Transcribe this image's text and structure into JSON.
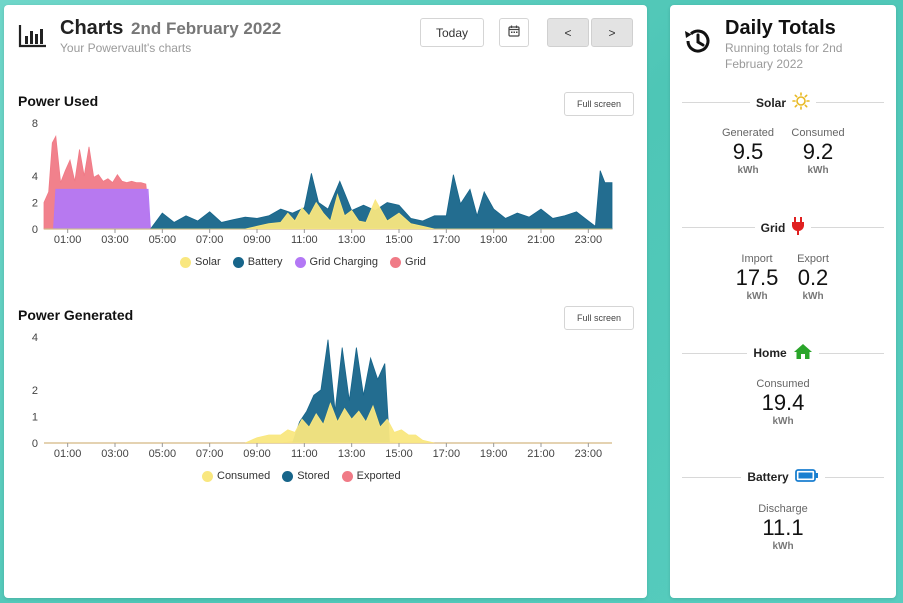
{
  "header": {
    "title": "Charts",
    "date": "2nd February 2022",
    "subtitle": "Your Powervault's charts",
    "today_button": "Today",
    "prev_button": "<",
    "next_button": ">",
    "chart_icon": "bar-chart-icon",
    "calendar_icon": "calendar-icon"
  },
  "colors": {
    "solar": "#f9e77f",
    "battery": "#17658a",
    "grid_charging": "#b378f5",
    "grid": "#f07a86",
    "consumed": "#f9e77f",
    "stored": "#17658a",
    "exported": "#f07a86"
  },
  "chart_data": [
    {
      "type": "area",
      "title": "Power Used",
      "fullscreen_label": "Full screen",
      "x_ticks": [
        "01:00",
        "03:00",
        "05:00",
        "07:00",
        "09:00",
        "11:00",
        "13:00",
        "15:00",
        "17:00",
        "19:00",
        "21:00",
        "23:00"
      ],
      "y_ticks": [
        0,
        2,
        4,
        8
      ],
      "ylim": [
        0,
        8
      ],
      "xlim_hours": [
        0,
        24
      ],
      "legend": [
        "Solar",
        "Battery",
        "Grid Charging",
        "Grid"
      ],
      "series": [
        {
          "name": "Solar",
          "x": [
            0,
            8.5,
            9,
            9.5,
            10,
            10.3,
            10.6,
            10.9,
            11.2,
            11.5,
            11.8,
            12.1,
            12.4,
            12.7,
            13,
            13.3,
            13.6,
            14,
            14.5,
            15,
            15.5,
            16,
            16.5,
            24
          ],
          "values": [
            0,
            0,
            0.2,
            0.4,
            0.5,
            1.2,
            0.6,
            1.6,
            1.0,
            2.0,
            1.2,
            0.6,
            2.6,
            1.0,
            1.4,
            0.6,
            0.5,
            2.2,
            0.6,
            1.2,
            0.4,
            0.2,
            0,
            0
          ]
        },
        {
          "name": "Battery",
          "x": [
            0,
            4.5,
            5,
            5.5,
            6,
            6.5,
            7,
            7.5,
            8,
            8.5,
            9,
            9.5,
            10,
            10.5,
            11,
            11.3,
            11.6,
            12,
            12.5,
            13,
            13.5,
            14,
            14.5,
            15,
            15.5,
            16,
            16.5,
            17,
            17.3,
            17.6,
            18,
            18.3,
            18.6,
            19,
            19.5,
            20,
            20.5,
            21,
            21.5,
            22,
            22.5,
            23,
            23.3,
            23.5,
            23.7,
            24
          ],
          "values": [
            0,
            0,
            1.2,
            0.5,
            1.0,
            0.6,
            1.3,
            0.5,
            0.7,
            0.9,
            0.8,
            1.0,
            1.5,
            1.2,
            1.6,
            4.2,
            2.0,
            1.5,
            3.6,
            1.4,
            1.8,
            1.4,
            2.0,
            1.8,
            0.8,
            0.6,
            1.0,
            1.0,
            4.1,
            1.9,
            3.0,
            1.0,
            2.8,
            1.5,
            0.8,
            1.2,
            0.9,
            1.5,
            0.8,
            1.0,
            1.3,
            0.6,
            0.2,
            4.4,
            3.5,
            3.5
          ]
        },
        {
          "name": "Grid Charging",
          "x": [
            0,
            0.4,
            0.5,
            4.4,
            4.5,
            24
          ],
          "values": [
            0,
            0,
            3.0,
            3.0,
            0,
            0
          ]
        },
        {
          "name": "Grid",
          "x": [
            0,
            0.2,
            0.35,
            0.5,
            0.7,
            0.9,
            1.1,
            1.3,
            1.5,
            1.7,
            1.9,
            2.1,
            2.3,
            2.5,
            2.7,
            2.9,
            3.1,
            3.3,
            3.5,
            3.7,
            3.9,
            4.1,
            4.3,
            4.5,
            24
          ],
          "values": [
            2.0,
            2.8,
            6.5,
            7.0,
            3.5,
            4.4,
            5.2,
            3.6,
            6.0,
            4.0,
            6.2,
            3.9,
            4.1,
            3.6,
            3.8,
            3.5,
            4.1,
            3.6,
            3.5,
            3.6,
            3.5,
            3.5,
            3.4,
            0,
            0
          ]
        }
      ]
    },
    {
      "type": "area",
      "title": "Power Generated",
      "fullscreen_label": "Full screen",
      "x_ticks": [
        "01:00",
        "03:00",
        "05:00",
        "07:00",
        "09:00",
        "11:00",
        "13:00",
        "15:00",
        "17:00",
        "19:00",
        "21:00",
        "23:00"
      ],
      "y_ticks": [
        0,
        1,
        2,
        4
      ],
      "ylim": [
        0,
        4
      ],
      "xlim_hours": [
        0,
        24
      ],
      "legend": [
        "Consumed",
        "Stored",
        "Exported"
      ],
      "series": [
        {
          "name": "Consumed",
          "x": [
            0,
            8.5,
            9,
            9.5,
            10,
            10.3,
            10.6,
            10.9,
            11.2,
            11.5,
            11.8,
            12.1,
            12.4,
            12.7,
            13,
            13.3,
            13.6,
            13.9,
            14.2,
            14.5,
            14.8,
            15.1,
            15.4,
            15.7,
            16,
            16.5,
            24
          ],
          "values": [
            0,
            0,
            0.2,
            0.3,
            0.3,
            0.5,
            0.4,
            0.9,
            0.6,
            1.1,
            0.7,
            1.5,
            0.8,
            1.3,
            0.9,
            1.2,
            0.8,
            1.4,
            0.6,
            0.9,
            0.4,
            0.5,
            0.3,
            0.3,
            0.1,
            0,
            0
          ]
        },
        {
          "name": "Stored",
          "x": [
            0,
            10.5,
            10.8,
            11.1,
            11.4,
            11.7,
            12.0,
            12.3,
            12.6,
            12.9,
            13.2,
            13.5,
            13.8,
            14.1,
            14.4,
            14.6,
            24
          ],
          "values": [
            0,
            0,
            0.8,
            1.2,
            1.8,
            2.0,
            3.9,
            1.2,
            3.6,
            1.6,
            3.6,
            1.8,
            3.2,
            2.4,
            3.0,
            0,
            0
          ]
        },
        {
          "name": "Exported",
          "x": [
            0,
            10,
            10.5,
            11,
            11.5,
            12,
            12.5,
            13,
            13.5,
            14,
            14.5,
            15,
            24
          ],
          "values": [
            0,
            0,
            0.05,
            0.1,
            0.1,
            0.1,
            0.05,
            0.1,
            0.1,
            0.05,
            0.05,
            0,
            0
          ]
        }
      ]
    }
  ],
  "sidebar": {
    "title": "Daily Totals",
    "subtitle_line1": "Running totals for 2nd",
    "subtitle_line2": "February 2022",
    "history_icon": "history-icon",
    "solar": {
      "heading": "Solar",
      "icon": "sun-icon",
      "generated_label": "Generated",
      "generated_value": "9.5",
      "generated_unit": "kWh",
      "consumed_label": "Consumed",
      "consumed_value": "9.2",
      "consumed_unit": "kWh"
    },
    "grid": {
      "heading": "Grid",
      "icon": "plug-icon",
      "import_label": "Import",
      "import_value": "17.5",
      "import_unit": "kWh",
      "export_label": "Export",
      "export_value": "0.2",
      "export_unit": "kWh"
    },
    "home": {
      "heading": "Home",
      "icon": "home-icon",
      "consumed_label": "Consumed",
      "consumed_value": "19.4",
      "consumed_unit": "kWh"
    },
    "battery": {
      "heading": "Battery",
      "icon": "battery-icon",
      "discharge_label": "Discharge",
      "discharge_value": "11.1",
      "discharge_unit": "kWh"
    }
  }
}
